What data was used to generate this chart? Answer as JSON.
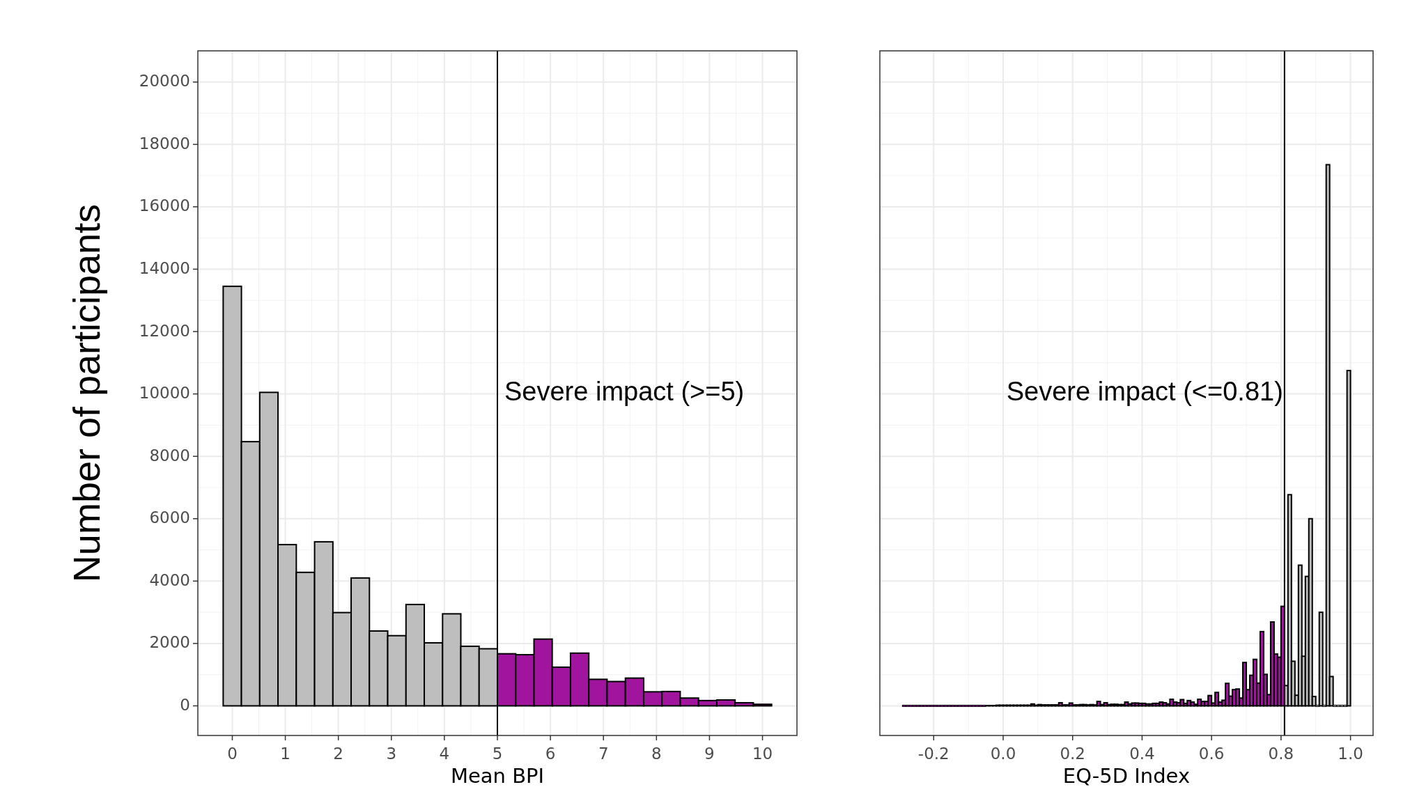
{
  "chart_data": [
    {
      "type": "histogram",
      "xlabel": "Mean BPI",
      "ylabel": "Number of participants",
      "xlim": [
        -0.65,
        10.65
      ],
      "ylim": [
        -950,
        21000
      ],
      "xticks": [
        0,
        1,
        2,
        3,
        4,
        5,
        6,
        7,
        8,
        9,
        10
      ],
      "yticks": [
        0,
        2000,
        4000,
        6000,
        8000,
        10000,
        12000,
        14000,
        16000,
        18000,
        20000
      ],
      "grid": true,
      "bins": [
        -0.172,
        0.172,
        0.517,
        0.862,
        1.207,
        1.552,
        1.897,
        2.241,
        2.586,
        2.931,
        3.276,
        3.621,
        3.966,
        4.31,
        4.655,
        5,
        5.345,
        5.69,
        6.034,
        6.379,
        6.724,
        7.069,
        7.414,
        7.759,
        8.103,
        8.448,
        8.793,
        9.138,
        9.483,
        9.828,
        10.172
      ],
      "values": [
        13450,
        8470,
        10050,
        5170,
        4280,
        5260,
        2990,
        4100,
        2400,
        2250,
        3250,
        2020,
        2950,
        1910,
        1830,
        1670,
        1640,
        2140,
        1240,
        1690,
        850,
        780,
        890,
        450,
        460,
        250,
        170,
        190,
        100,
        50
      ],
      "colors": [
        "#bebebe",
        "#bebebe",
        "#bebebe",
        "#bebebe",
        "#bebebe",
        "#bebebe",
        "#bebebe",
        "#bebebe",
        "#bebebe",
        "#bebebe",
        "#bebebe",
        "#bebebe",
        "#bebebe",
        "#bebebe",
        "#bebebe",
        "#a0149e",
        "#a0149e",
        "#a0149e",
        "#a0149e",
        "#a0149e",
        "#a0149e",
        "#a0149e",
        "#a0149e",
        "#a0149e",
        "#a0149e",
        "#a0149e",
        "#a0149e",
        "#a0149e",
        "#a0149e",
        "#a0149e"
      ],
      "ref_lines": [
        {
          "axis": "x",
          "value": 5,
          "color": "#000000",
          "label": "Severe impact (>=5)"
        }
      ]
    },
    {
      "type": "histogram",
      "xlabel": "EQ-5D Index",
      "xlim": [
        -0.355,
        1.065
      ],
      "ylim": [
        -950,
        21000
      ],
      "xticks": [
        {
          "value": -0.2,
          "label": "-0.2"
        },
        {
          "value": 0,
          "label": "0.0"
        },
        0.2,
        0.4,
        0.6,
        0.8,
        {
          "value": 1,
          "label": "1.0"
        }
      ],
      "yticks": [
        0,
        2000,
        4000,
        6000,
        8000,
        10000,
        12000,
        14000,
        16000,
        18000,
        20000
      ],
      "grid": true,
      "tick_labels": "x",
      "bins": [
        -0.29,
        -0.28,
        -0.27,
        -0.26,
        -0.25,
        -0.24,
        -0.23,
        -0.22,
        -0.21,
        -0.2,
        -0.19,
        -0.18,
        -0.17,
        -0.16,
        -0.15,
        -0.14,
        -0.13,
        -0.12,
        -0.11,
        -0.1,
        -0.09,
        -0.08,
        -0.07,
        -0.06,
        -0.05,
        -0.04,
        -0.03,
        -0.02,
        -0.01,
        0,
        0.01,
        0.02,
        0.03,
        0.04,
        0.05,
        0.06,
        0.07,
        0.08,
        0.09,
        0.1,
        0.11,
        0.12,
        0.13,
        0.14,
        0.15,
        0.16,
        0.17,
        0.18,
        0.19,
        0.2,
        0.21,
        0.22,
        0.23,
        0.24,
        0.25,
        0.26,
        0.27,
        0.28,
        0.29,
        0.3,
        0.31,
        0.32,
        0.33,
        0.34,
        0.35,
        0.36,
        0.37,
        0.38,
        0.39,
        0.4,
        0.41,
        0.42,
        0.43,
        0.44,
        0.45,
        0.46,
        0.47,
        0.48,
        0.49,
        0.5,
        0.51,
        0.52,
        0.53,
        0.54,
        0.55,
        0.56,
        0.57,
        0.58,
        0.59,
        0.6,
        0.61,
        0.62,
        0.63,
        0.64,
        0.65,
        0.66,
        0.67,
        0.68,
        0.69,
        0.7,
        0.71,
        0.72,
        0.73,
        0.74,
        0.75,
        0.76,
        0.77,
        0.78,
        0.79,
        0.8,
        0.81,
        0.82,
        0.83,
        0.84,
        0.85,
        0.86,
        0.87,
        0.88,
        0.89,
        0.9,
        0.91,
        0.92,
        0.93,
        0.94,
        0.95,
        0.96,
        0.97,
        0.98,
        0.99,
        1
      ],
      "values": [
        0,
        0,
        0,
        0,
        0,
        0,
        0,
        0,
        0,
        0,
        0,
        0,
        0,
        0,
        0,
        0,
        0,
        0,
        0,
        0,
        0,
        0,
        0,
        0,
        10,
        10,
        10,
        20,
        20,
        20,
        20,
        20,
        20,
        20,
        20,
        20,
        20,
        60,
        20,
        40,
        30,
        30,
        30,
        30,
        30,
        100,
        30,
        30,
        90,
        30,
        30,
        40,
        40,
        30,
        40,
        30,
        140,
        40,
        100,
        40,
        50,
        50,
        40,
        40,
        120,
        60,
        90,
        90,
        80,
        80,
        60,
        60,
        80,
        80,
        120,
        100,
        60,
        210,
        120,
        100,
        200,
        80,
        170,
        120,
        50,
        210,
        140,
        140,
        330,
        90,
        430,
        120,
        180,
        720,
        310,
        520,
        540,
        250,
        1390,
        520,
        980,
        1490,
        730,
        2380,
        1010,
        360,
        2690,
        1660,
        1560,
        3190,
        650,
        6770,
        1430,
        340,
        4510,
        1590,
        4150,
        6000,
        300,
        0,
        3000,
        0,
        17350,
        940,
        0,
        0,
        0,
        0,
        10750
      ],
      "colors": [
        "#a0149e",
        "#a0149e",
        "#a0149e",
        "#a0149e",
        "#a0149e",
        "#a0149e",
        "#a0149e",
        "#a0149e",
        "#a0149e",
        "#a0149e",
        "#a0149e",
        "#a0149e",
        "#a0149e",
        "#a0149e",
        "#a0149e",
        "#a0149e",
        "#a0149e",
        "#a0149e",
        "#a0149e",
        "#a0149e",
        "#a0149e",
        "#a0149e",
        "#a0149e",
        "#a0149e",
        "#a0149e",
        "#a0149e",
        "#a0149e",
        "#a0149e",
        "#a0149e",
        "#a0149e",
        "#a0149e",
        "#a0149e",
        "#a0149e",
        "#a0149e",
        "#a0149e",
        "#a0149e",
        "#a0149e",
        "#a0149e",
        "#a0149e",
        "#a0149e",
        "#a0149e",
        "#a0149e",
        "#a0149e",
        "#a0149e",
        "#a0149e",
        "#a0149e",
        "#a0149e",
        "#a0149e",
        "#a0149e",
        "#a0149e",
        "#a0149e",
        "#a0149e",
        "#a0149e",
        "#a0149e",
        "#a0149e",
        "#a0149e",
        "#a0149e",
        "#a0149e",
        "#a0149e",
        "#a0149e",
        "#a0149e",
        "#a0149e",
        "#a0149e",
        "#a0149e",
        "#a0149e",
        "#a0149e",
        "#a0149e",
        "#a0149e",
        "#a0149e",
        "#a0149e",
        "#a0149e",
        "#a0149e",
        "#a0149e",
        "#a0149e",
        "#a0149e",
        "#a0149e",
        "#a0149e",
        "#a0149e",
        "#a0149e",
        "#a0149e",
        "#a0149e",
        "#a0149e",
        "#a0149e",
        "#a0149e",
        "#a0149e",
        "#a0149e",
        "#a0149e",
        "#a0149e",
        "#a0149e",
        "#a0149e",
        "#a0149e",
        "#a0149e",
        "#a0149e",
        "#a0149e",
        "#a0149e",
        "#a0149e",
        "#a0149e",
        "#a0149e",
        "#a0149e",
        "#a0149e",
        "#a0149e",
        "#a0149e",
        "#a0149e",
        "#a0149e",
        "#a0149e",
        "#a0149e",
        "#a0149e",
        "#a0149e",
        "#a0149e",
        "#a0149e",
        "#bebebe",
        "#bebebe",
        "#bebebe",
        "#bebebe",
        "#bebebe",
        "#bebebe",
        "#bebebe",
        "#bebebe",
        "#bebebe",
        "#bebebe",
        "#bebebe",
        "#bebebe",
        "#bebebe",
        "#bebebe",
        "#bebebe",
        "#bebebe",
        "#bebebe",
        "#bebebe",
        "#bebebe"
      ],
      "ref_lines": [
        {
          "axis": "x",
          "value": 0.81,
          "color": "#000000",
          "label": "Severe impact (<=0.81)"
        }
      ]
    }
  ]
}
